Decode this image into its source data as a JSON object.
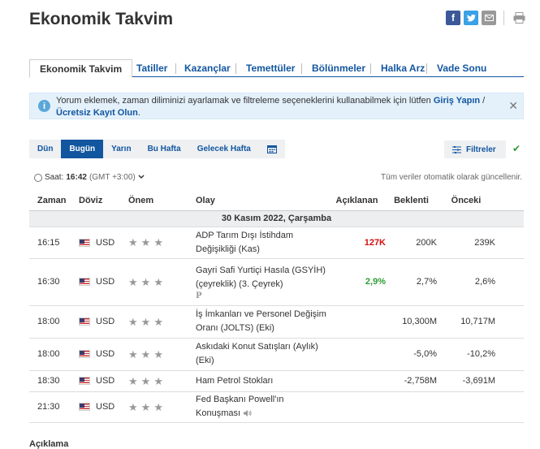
{
  "page": {
    "title": "Ekonomik Takvim"
  },
  "social": [
    "facebook-icon",
    "twitter-icon",
    "email-icon",
    "print-icon"
  ],
  "tabs": [
    {
      "label": "Ekonomik Takvim",
      "active": true
    },
    {
      "label": "Tatiller"
    },
    {
      "label": "Kazançlar"
    },
    {
      "label": "Temettüler"
    },
    {
      "label": "Bölünmeler"
    },
    {
      "label": "Halka Arz"
    },
    {
      "label": "Vade Sonu"
    }
  ],
  "notice": {
    "text_before": "Yorum eklemek, zaman diliminizi ayarlamak ve filtreleme seçeneklerini kullanabilmek için lütfen ",
    "login": "Giriş Yapın",
    "middle": " / ",
    "register": "Ücretsiz Kayıt Olun",
    "end": "."
  },
  "date_tabs": [
    "Dün",
    "Bugün",
    "Yarın",
    "Bu Hafta",
    "Gelecek Hafta"
  ],
  "filters_label": "Filtreler",
  "timebar": {
    "label": "Saat:",
    "time": "16:42",
    "tz": "(GMT +3:00)"
  },
  "auto_update": "Tüm veriler otomatik olarak güncellenir.",
  "table": {
    "headers": [
      "Zaman",
      "Döviz",
      "Önem",
      "Olay",
      "Açıklanan",
      "Beklenti",
      "Önceki"
    ],
    "date": "30 Kasım 2022, Çarşamba",
    "rows": [
      {
        "time": "16:15",
        "currency": "USD",
        "importance": 3,
        "event": "ADP Tarım Dışı İstihdam Değişikliği (Kas)",
        "actual": "127K",
        "actual_color": "red",
        "forecast": "200K",
        "previous": "239K"
      },
      {
        "time": "16:30",
        "currency": "USD",
        "importance": 3,
        "event": "Gayri Safi Yurtiçi Hasıla (GSYİH) (çeyreklik) (3. Çeyrek)",
        "prelim": "P",
        "actual": "2,9%",
        "actual_color": "green",
        "forecast": "2,7%",
        "previous": "2,6%"
      },
      {
        "time": "18:00",
        "currency": "USD",
        "importance": 3,
        "event": "İş İmkanları ve Personel Değişim Oranı (JOLTS) (Eki)",
        "actual": "",
        "forecast": "10,300M",
        "previous": "10,717M"
      },
      {
        "time": "18:00",
        "currency": "USD",
        "importance": 3,
        "event": "Askıdaki Konut Satışları (Aylık) (Eki)",
        "actual": "",
        "forecast": "-5,0%",
        "previous": "-10,2%"
      },
      {
        "time": "18:30",
        "currency": "USD",
        "importance": 3,
        "event": "Ham Petrol Stokları",
        "actual": "",
        "forecast": "-2,758M",
        "previous": "-3,691M"
      },
      {
        "time": "21:30",
        "currency": "USD",
        "importance": 3,
        "event": "Fed Başkanı Powell'ın Konuşması",
        "speech": true,
        "actual": "",
        "forecast": "",
        "previous": ""
      }
    ]
  },
  "bottom_text": "Açıklama"
}
